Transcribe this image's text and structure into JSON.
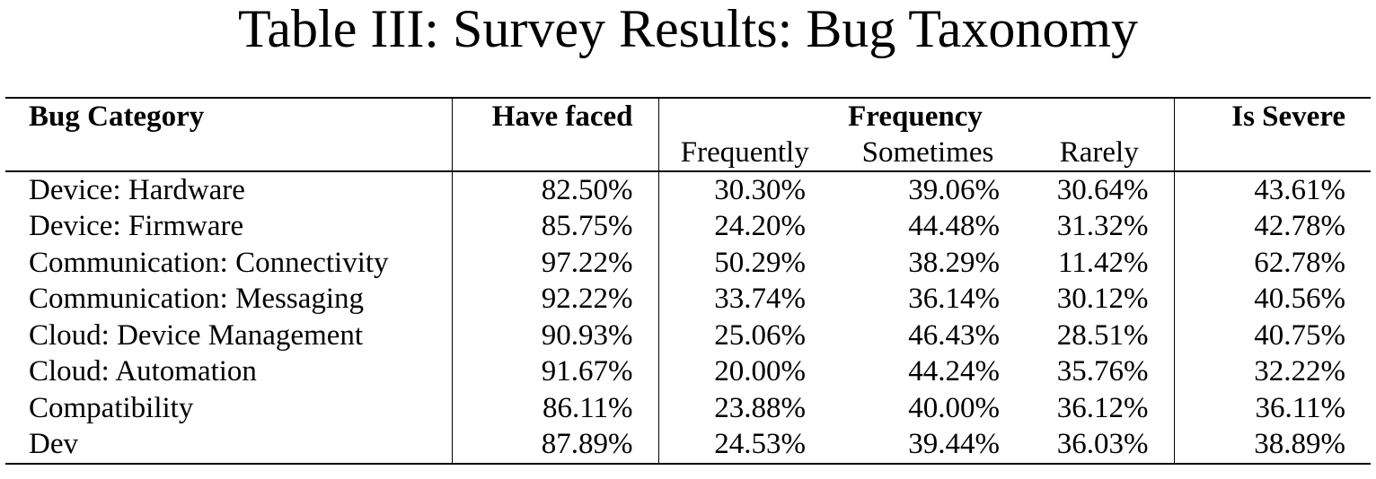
{
  "caption": "Table III: Survey Results: Bug Taxonomy",
  "table": {
    "headers": {
      "category": "Bug Category",
      "have_faced": "Have faced",
      "frequency": "Frequency",
      "is_severe": "Is Severe",
      "frequently": "Frequently",
      "sometimes": "Sometimes",
      "rarely": "Rarely"
    },
    "rows": [
      {
        "category": "Device: Hardware",
        "have_faced": "82.50%",
        "frequently": "30.30%",
        "sometimes": "39.06%",
        "rarely": "30.64%",
        "is_severe": "43.61%"
      },
      {
        "category": "Device: Firmware",
        "have_faced": "85.75%",
        "frequently": "24.20%",
        "sometimes": "44.48%",
        "rarely": "31.32%",
        "is_severe": "42.78%"
      },
      {
        "category": "Communication: Connectivity",
        "have_faced": "97.22%",
        "frequently": "50.29%",
        "sometimes": "38.29%",
        "rarely": "11.42%",
        "is_severe": "62.78%"
      },
      {
        "category": "Communication: Messaging",
        "have_faced": "92.22%",
        "frequently": "33.74%",
        "sometimes": "36.14%",
        "rarely": "30.12%",
        "is_severe": "40.56%"
      },
      {
        "category": "Cloud: Device Management",
        "have_faced": "90.93%",
        "frequently": "25.06%",
        "sometimes": "46.43%",
        "rarely": "28.51%",
        "is_severe": "40.75%"
      },
      {
        "category": "Cloud: Automation",
        "have_faced": "91.67%",
        "frequently": "20.00%",
        "sometimes": "44.24%",
        "rarely": "35.76%",
        "is_severe": "32.22%"
      },
      {
        "category": "Compatibility",
        "have_faced": "86.11%",
        "frequently": "23.88%",
        "sometimes": "40.00%",
        "rarely": "36.12%",
        "is_severe": "36.11%"
      },
      {
        "category": "Dev",
        "have_faced": "87.89%",
        "frequently": "24.53%",
        "sometimes": "39.44%",
        "rarely": "36.03%",
        "is_severe": "38.89%"
      }
    ]
  }
}
